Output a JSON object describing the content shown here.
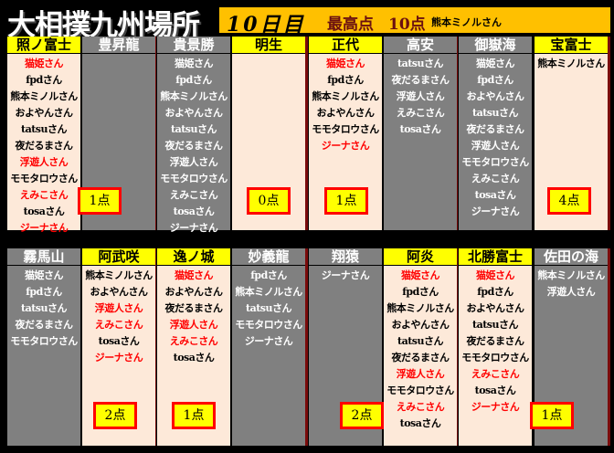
{
  "title": "大相撲九州場所",
  "banner": {
    "day": "10日目",
    "top_label": "最高点",
    "top_score": "10点",
    "top_name": "熊本ミノルさん"
  },
  "colors": {
    "winner_header": "#ffff00",
    "winner_body": "#fde9d9",
    "loser": "#808080",
    "highlight_text": "#ff0000",
    "banner": "#ffc000"
  },
  "rows": [
    {
      "bouts": [
        {
          "score": "1点",
          "wrestlers": [
            {
              "name": "照ノ富士",
              "winner": true,
              "voters": [
                {
                  "n": "猫姫さん",
                  "red": true
                },
                {
                  "n": "fpdさん"
                },
                {
                  "n": "熊本ミノルさん"
                },
                {
                  "n": "およやんさん"
                },
                {
                  "n": "tatsuさん"
                },
                {
                  "n": "夜だるまさん"
                },
                {
                  "n": "浮遊人さん",
                  "red": true
                },
                {
                  "n": "モモタロウさん"
                },
                {
                  "n": "えみこさん",
                  "red": true
                },
                {
                  "n": "tosaさん"
                },
                {
                  "n": "ジーナさん",
                  "red": true
                }
              ]
            },
            {
              "name": "豊昇龍",
              "winner": false,
              "voters": []
            }
          ]
        },
        {
          "score": "0点",
          "wrestlers": [
            {
              "name": "貴景勝",
              "winner": false,
              "voters": [
                {
                  "n": "猫姫さん"
                },
                {
                  "n": "fpdさん"
                },
                {
                  "n": "熊本ミノルさん"
                },
                {
                  "n": "およやんさん"
                },
                {
                  "n": "tatsuさん"
                },
                {
                  "n": "夜だるまさん"
                },
                {
                  "n": "浮遊人さん"
                },
                {
                  "n": "モモタロウさん"
                },
                {
                  "n": "えみこさん"
                },
                {
                  "n": "tosaさん"
                },
                {
                  "n": "ジーナさん"
                }
              ]
            },
            {
              "name": "明生",
              "winner": true,
              "voters": []
            }
          ]
        },
        {
          "score": "1点",
          "wrestlers": [
            {
              "name": "正代",
              "winner": true,
              "voters": [
                {
                  "n": "猫姫さん",
                  "red": true
                },
                {
                  "n": "fpdさん"
                },
                {
                  "n": "熊本ミノルさん"
                },
                {
                  "n": "およやんさん"
                },
                {
                  "n": "モモタロウさん"
                },
                {
                  "n": "ジーナさん",
                  "red": true
                }
              ]
            },
            {
              "name": "高安",
              "winner": false,
              "voters": [
                {
                  "n": "tatsuさん"
                },
                {
                  "n": "夜だるまさん"
                },
                {
                  "n": "浮遊人さん"
                },
                {
                  "n": "えみこさん"
                },
                {
                  "n": "tosaさん"
                }
              ]
            }
          ]
        },
        {
          "score": "4点",
          "wrestlers": [
            {
              "name": "御嶽海",
              "winner": false,
              "voters": [
                {
                  "n": "猫姫さん"
                },
                {
                  "n": "fpdさん"
                },
                {
                  "n": "およやんさん"
                },
                {
                  "n": "tatsuさん"
                },
                {
                  "n": "夜だるまさん"
                },
                {
                  "n": "浮遊人さん"
                },
                {
                  "n": "モモタロウさん"
                },
                {
                  "n": "えみこさん"
                },
                {
                  "n": "tosaさん"
                },
                {
                  "n": "ジーナさん"
                }
              ]
            },
            {
              "name": "宝富士",
              "winner": true,
              "voters": [
                {
                  "n": "熊本ミノルさん"
                }
              ]
            }
          ]
        }
      ]
    },
    {
      "bouts": [
        {
          "score": "2点",
          "wrestlers": [
            {
              "name": "霧馬山",
              "winner": false,
              "voters": [
                {
                  "n": "猫姫さん"
                },
                {
                  "n": "fpdさん"
                },
                {
                  "n": "tatsuさん"
                },
                {
                  "n": "夜だるまさん"
                },
                {
                  "n": "モモタロウさん"
                }
              ]
            },
            {
              "name": "阿武咲",
              "winner": true,
              "voters": [
                {
                  "n": "熊本ミノルさん"
                },
                {
                  "n": "およやんさん"
                },
                {
                  "n": "浮遊人さん",
                  "red": true
                },
                {
                  "n": "えみこさん",
                  "red": true
                },
                {
                  "n": "tosaさん"
                },
                {
                  "n": "ジーナさん",
                  "red": true
                }
              ]
            }
          ]
        },
        {
          "score": "1点",
          "wrestlers": [
            {
              "name": "逸ノ城",
              "winner": true,
              "voters": [
                {
                  "n": "猫姫さん",
                  "red": true
                },
                {
                  "n": "およやんさん"
                },
                {
                  "n": "夜だるまさん"
                },
                {
                  "n": "浮遊人さん",
                  "red": true
                },
                {
                  "n": "えみこさん",
                  "red": true
                },
                {
                  "n": "tosaさん"
                }
              ]
            },
            {
              "name": "妙義龍",
              "winner": false,
              "voters": [
                {
                  "n": "fpdさん"
                },
                {
                  "n": "熊本ミノルさん"
                },
                {
                  "n": "tatsuさん"
                },
                {
                  "n": "モモタロウさん"
                },
                {
                  "n": "ジーナさん"
                }
              ]
            }
          ]
        },
        {
          "score": "2点",
          "wrestlers": [
            {
              "name": "翔猿",
              "winner": false,
              "voters": [
                {
                  "n": "ジーナさん"
                }
              ]
            },
            {
              "name": "阿炎",
              "winner": true,
              "voters": [
                {
                  "n": "猫姫さん",
                  "red": true
                },
                {
                  "n": "fpdさん"
                },
                {
                  "n": "熊本ミノルさん"
                },
                {
                  "n": "およやんさん"
                },
                {
                  "n": "tatsuさん"
                },
                {
                  "n": "夜だるまさん"
                },
                {
                  "n": "浮遊人さん",
                  "red": true
                },
                {
                  "n": "モモタロウさん"
                },
                {
                  "n": "えみこさん",
                  "red": true
                },
                {
                  "n": "tosaさん"
                }
              ]
            }
          ]
        },
        {
          "score": "1点",
          "wrestlers": [
            {
              "name": "北勝富士",
              "winner": true,
              "voters": [
                {
                  "n": "猫姫さん",
                  "red": true
                },
                {
                  "n": "fpdさん"
                },
                {
                  "n": "およやんさん"
                },
                {
                  "n": "tatsuさん"
                },
                {
                  "n": "夜だるまさん"
                },
                {
                  "n": "モモタロウさん"
                },
                {
                  "n": "えみこさん",
                  "red": true
                },
                {
                  "n": "tosaさん"
                },
                {
                  "n": "ジーナさん",
                  "red": true
                }
              ]
            },
            {
              "name": "佐田の海",
              "winner": false,
              "voters": [
                {
                  "n": "熊本ミノルさん"
                },
                {
                  "n": "浮遊人さん"
                }
              ]
            }
          ]
        }
      ]
    }
  ]
}
